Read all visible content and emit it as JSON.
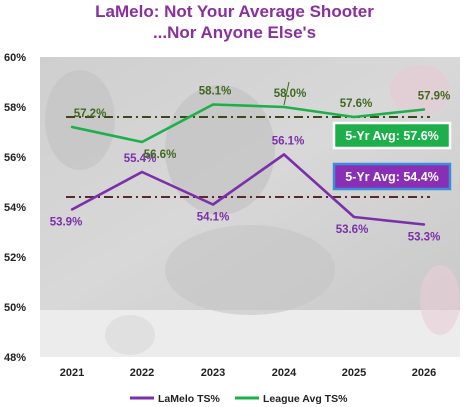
{
  "chart_data": {
    "type": "line",
    "title": "LaMelo: Not Your Average Shooter",
    "subtitle": "...Nor Anyone Else's",
    "categories": [
      "2021",
      "2022",
      "2023",
      "2024",
      "2025",
      "2026"
    ],
    "ylim": [
      48,
      60
    ],
    "yticks": [
      "48%",
      "50%",
      "52%",
      "54%",
      "56%",
      "58%",
      "60%"
    ],
    "grid": false,
    "legend_position": "bottom",
    "series": [
      {
        "name": "LaMelo TS%",
        "color": "#7b2fa8",
        "values": [
          53.9,
          55.4,
          54.1,
          56.1,
          53.6,
          53.3
        ],
        "labels": [
          "53.9%",
          "55.4%",
          "54.1%",
          "56.1%",
          "53.6%",
          "53.3%"
        ]
      },
      {
        "name": "League Avg TS%",
        "color": "#1db04a",
        "values": [
          57.2,
          56.6,
          58.1,
          58.0,
          57.6,
          57.9
        ],
        "labels": [
          "57.2%",
          "56.6%",
          "58.1%",
          "58.0%",
          "57.6%",
          "57.9%"
        ]
      }
    ],
    "averages": [
      {
        "label": "5-Yr Avg: 57.6%",
        "value": 57.6,
        "box_color": "#1db04a",
        "border_color": "#ffffff",
        "line_color": "#3b4a1e"
      },
      {
        "label": "5-Yr Avg: 54.4%",
        "value": 54.4,
        "box_color": "#8a2fb5",
        "border_color": "#3b8fd6",
        "line_color": "#5a2a2a"
      }
    ],
    "colors": {
      "title": "#8a2f9e",
      "lamelo_label": "#7b2fa8",
      "league_label": "#3e6a1e"
    }
  }
}
